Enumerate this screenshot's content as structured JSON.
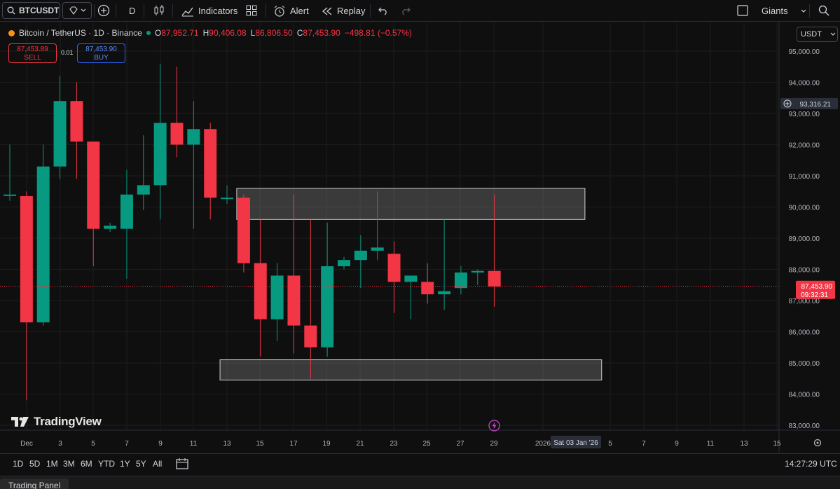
{
  "toolbar": {
    "symbol": "BTCUSDT",
    "interval": "D",
    "indicators_label": "Indicators",
    "alert_label": "Alert",
    "replay_label": "Replay",
    "layout_name": "Giants"
  },
  "legend": {
    "title": "Bitcoin / TetherUS · 1D · Binance",
    "open_label": "O",
    "open": "87,952.71",
    "high_label": "H",
    "high": "90,406.08",
    "low_label": "L",
    "low": "86,806.50",
    "close_label": "C",
    "close": "87,453.90",
    "change": "−498.81 (−0.57%)"
  },
  "orders": {
    "sell_price": "87,453.89",
    "sell_label": "SELL",
    "spread": "0.01",
    "buy_price": "87,453.90",
    "buy_label": "BUY"
  },
  "currency": "USDT",
  "branding": "TradingView",
  "range_buttons": [
    "1D",
    "5D",
    "1M",
    "3M",
    "6M",
    "YTD",
    "1Y",
    "5Y",
    "All"
  ],
  "clock": "14:27:29 UTC",
  "panel_label": "Trading Panel",
  "colors": {
    "up": "#089981",
    "down": "#f23645",
    "background": "#0f0f0f",
    "grid": "#1c1c1c"
  },
  "chart_data": {
    "type": "candlestick",
    "ylim": [
      82700,
      95600
    ],
    "y_ticks": [
      "95,000.00",
      "94,000.00",
      "93,000.00",
      "92,000.00",
      "91,000.00",
      "90,000.00",
      "89,000.00",
      "88,000.00",
      "87,000.00",
      "86,000.00",
      "85,000.00",
      "84,000.00",
      "83,000.00"
    ],
    "x_ticks": [
      "Dec",
      "3",
      "5",
      "7",
      "9",
      "11",
      "13",
      "15",
      "17",
      "19",
      "21",
      "23",
      "25",
      "27",
      "29",
      "2026",
      "5",
      "7",
      "9",
      "11",
      "13",
      "15"
    ],
    "crosshair_x_label": "Sat 03 Jan '26",
    "crosshair_price": "93,316.21",
    "last_price": "87,453.90",
    "countdown": "09:32:31",
    "candles": [
      {
        "date": "Nov 30",
        "o": 90400,
        "h": 92000,
        "l": 90200,
        "c": 90400
      },
      {
        "date": "Dec 1",
        "o": 90350,
        "h": 90500,
        "l": 83800,
        "c": 86300
      },
      {
        "date": "Dec 2",
        "o": 86300,
        "h": 92000,
        "l": 86200,
        "c": 91300
      },
      {
        "date": "Dec 3",
        "o": 91300,
        "h": 94200,
        "l": 90900,
        "c": 93400
      },
      {
        "date": "Dec 4",
        "o": 93400,
        "h": 94000,
        "l": 90900,
        "c": 92100
      },
      {
        "date": "Dec 5",
        "o": 92100,
        "h": 92100,
        "l": 88100,
        "c": 89300
      },
      {
        "date": "Dec 6",
        "o": 89300,
        "h": 89500,
        "l": 89200,
        "c": 89400
      },
      {
        "date": "Dec 7",
        "o": 89300,
        "h": 91200,
        "l": 87700,
        "c": 90400
      },
      {
        "date": "Dec 8",
        "o": 90400,
        "h": 92300,
        "l": 89900,
        "c": 90700
      },
      {
        "date": "Dec 9",
        "o": 90700,
        "h": 94600,
        "l": 89600,
        "c": 92700
      },
      {
        "date": "Dec 10",
        "o": 92700,
        "h": 94500,
        "l": 91600,
        "c": 92000
      },
      {
        "date": "Dec 11",
        "o": 92000,
        "h": 93400,
        "l": 89300,
        "c": 92500
      },
      {
        "date": "Dec 12",
        "o": 92500,
        "h": 92700,
        "l": 89600,
        "c": 90300
      },
      {
        "date": "Dec 13",
        "o": 90300,
        "h": 90700,
        "l": 90100,
        "c": 90300
      },
      {
        "date": "Dec 14",
        "o": 90300,
        "h": 90400,
        "l": 87900,
        "c": 88200
      },
      {
        "date": "Dec 15",
        "o": 88200,
        "h": 89600,
        "l": 85200,
        "c": 86400
      },
      {
        "date": "Dec 16",
        "o": 86400,
        "h": 88200,
        "l": 85700,
        "c": 87800
      },
      {
        "date": "Dec 17",
        "o": 87800,
        "h": 90400,
        "l": 85300,
        "c": 86200
      },
      {
        "date": "Dec 18",
        "o": 86200,
        "h": 89600,
        "l": 84500,
        "c": 85500
      },
      {
        "date": "Dec 19",
        "o": 85500,
        "h": 89500,
        "l": 85200,
        "c": 88100
      },
      {
        "date": "Dec 20",
        "o": 88100,
        "h": 88400,
        "l": 88000,
        "c": 88300
      },
      {
        "date": "Dec 21",
        "o": 88300,
        "h": 89100,
        "l": 87400,
        "c": 88600
      },
      {
        "date": "Dec 22",
        "o": 88600,
        "h": 90500,
        "l": 88300,
        "c": 88700
      },
      {
        "date": "Dec 23",
        "o": 88500,
        "h": 88900,
        "l": 86600,
        "c": 87600
      },
      {
        "date": "Dec 24",
        "o": 87600,
        "h": 87800,
        "l": 86400,
        "c": 87800
      },
      {
        "date": "Dec 25",
        "o": 87600,
        "h": 88200,
        "l": 86900,
        "c": 87200
      },
      {
        "date": "Dec 26",
        "o": 87200,
        "h": 89600,
        "l": 86700,
        "c": 87300
      },
      {
        "date": "Dec 27",
        "o": 87400,
        "h": 88100,
        "l": 87200,
        "c": 87900
      },
      {
        "date": "Dec 28",
        "o": 87900,
        "h": 88000,
        "l": 87500,
        "c": 87950
      },
      {
        "date": "Dec 29",
        "o": 87950,
        "h": 90400,
        "l": 86800,
        "c": 87450
      }
    ],
    "zones": [
      {
        "from_date": "Dec 14",
        "to_date": "Jan 3",
        "top": 90600,
        "bottom": 89600
      },
      {
        "from_date": "Dec 13",
        "to_date": "Jan 4",
        "top": 85100,
        "bottom": 84450
      }
    ]
  }
}
